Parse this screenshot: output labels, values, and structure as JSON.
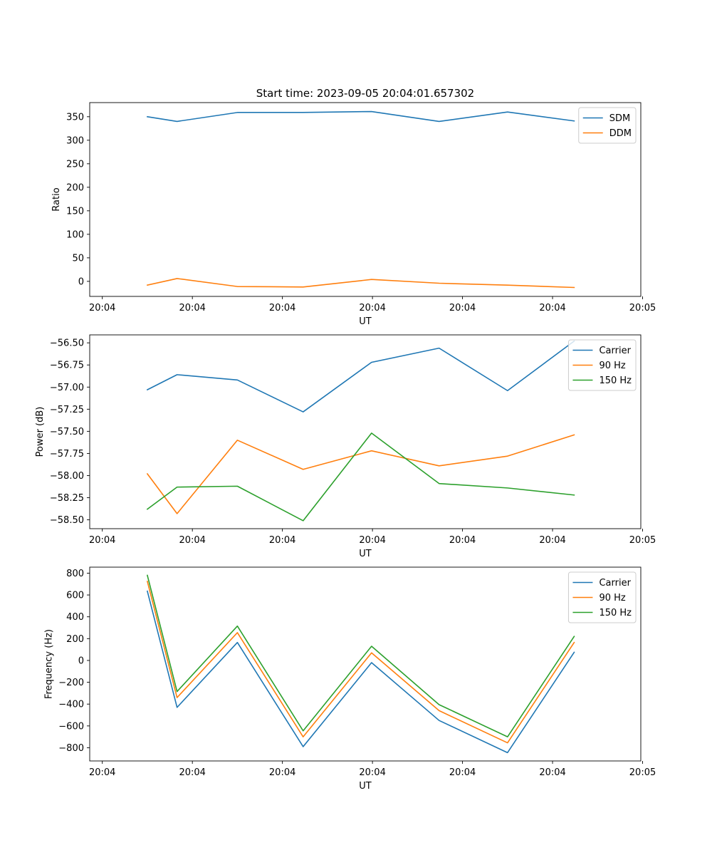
{
  "figure": {
    "title": "Start time: 2023-09-05 20:04:01.657302"
  },
  "chart_data": [
    {
      "type": "line",
      "title": "Start time: 2023-09-05 20:04:01.657302",
      "xlabel": "UT",
      "ylabel": "Ratio",
      "x": [
        0.5,
        0.83,
        1.5,
        2.23,
        2.99,
        3.74,
        4.5,
        5.24
      ],
      "xlim": [
        -0.14,
        5.98
      ],
      "x_ticks": [
        0,
        1,
        2,
        3,
        4,
        5,
        6
      ],
      "x_tick_labels": [
        "20:04",
        "20:04",
        "20:04",
        "20:04",
        "20:04",
        "20:04",
        "20:05"
      ],
      "ylim": [
        -32,
        380
      ],
      "y_ticks": [
        0,
        50,
        100,
        150,
        200,
        250,
        300,
        350
      ],
      "y_tick_labels": [
        "0",
        "50",
        "100",
        "150",
        "200",
        "250",
        "300",
        "350"
      ],
      "legend_position": "top-right",
      "series": [
        {
          "name": "SDM",
          "color": "#1f77b4",
          "values": [
            350,
            340,
            359,
            359,
            361,
            340,
            360,
            341
          ]
        },
        {
          "name": "DDM",
          "color": "#ff7f0e",
          "values": [
            -8,
            6,
            -11,
            -12,
            4,
            -4,
            -8,
            -13
          ]
        }
      ]
    },
    {
      "type": "line",
      "xlabel": "UT",
      "ylabel": "Power (dB)",
      "x": [
        0.5,
        0.83,
        1.5,
        2.23,
        2.99,
        3.74,
        4.5,
        5.24
      ],
      "xlim": [
        -0.14,
        5.98
      ],
      "x_ticks": [
        0,
        1,
        2,
        3,
        4,
        5,
        6
      ],
      "x_tick_labels": [
        "20:04",
        "20:04",
        "20:04",
        "20:04",
        "20:04",
        "20:04",
        "20:05"
      ],
      "ylim": [
        -58.6,
        -56.41
      ],
      "y_ticks": [
        -58.5,
        -58.25,
        -58.0,
        -57.75,
        -57.5,
        -57.25,
        -57.0,
        -56.75,
        -56.5
      ],
      "y_tick_labels": [
        "−58.50",
        "−58.25",
        "−58.00",
        "−57.75",
        "−57.50",
        "−57.25",
        "−57.00",
        "−56.75",
        "−56.50"
      ],
      "legend_position": "top-right",
      "series": [
        {
          "name": "Carrier",
          "color": "#1f77b4",
          "values": [
            -57.03,
            -56.86,
            -56.92,
            -57.28,
            -56.72,
            -56.56,
            -57.04,
            -56.48
          ]
        },
        {
          "name": "90 Hz",
          "color": "#ff7f0e",
          "values": [
            -57.98,
            -58.43,
            -57.6,
            -57.93,
            -57.72,
            -57.89,
            -57.78,
            -57.54
          ]
        },
        {
          "name": "150 Hz",
          "color": "#2ca02c",
          "values": [
            -58.38,
            -58.13,
            -58.12,
            -58.51,
            -57.52,
            -58.09,
            -58.14,
            -58.22
          ]
        }
      ]
    },
    {
      "type": "line",
      "xlabel": "UT",
      "ylabel": "Frequency (Hz)",
      "x": [
        0.5,
        0.83,
        1.5,
        2.23,
        2.99,
        3.74,
        4.5,
        5.24
      ],
      "xlim": [
        -0.14,
        5.98
      ],
      "x_ticks": [
        0,
        1,
        2,
        3,
        4,
        5,
        6
      ],
      "x_tick_labels": [
        "20:04",
        "20:04",
        "20:04",
        "20:04",
        "20:04",
        "20:04",
        "20:05"
      ],
      "ylim": [
        -921,
        855
      ],
      "y_ticks": [
        -800,
        -600,
        -400,
        -200,
        0,
        200,
        400,
        600,
        800
      ],
      "y_tick_labels": [
        "−800",
        "−600",
        "−400",
        "−200",
        "0",
        "200",
        "400",
        "600",
        "800"
      ],
      "legend_position": "top-right",
      "series": [
        {
          "name": "Carrier",
          "color": "#1f77b4",
          "values": [
            635,
            -430,
            165,
            -790,
            -20,
            -550,
            -845,
            75
          ]
        },
        {
          "name": "90 Hz",
          "color": "#ff7f0e",
          "values": [
            725,
            -340,
            255,
            -700,
            70,
            -460,
            -755,
            165
          ]
        },
        {
          "name": "150 Hz",
          "color": "#2ca02c",
          "values": [
            780,
            -285,
            315,
            -645,
            130,
            -405,
            -700,
            220
          ]
        }
      ]
    }
  ]
}
